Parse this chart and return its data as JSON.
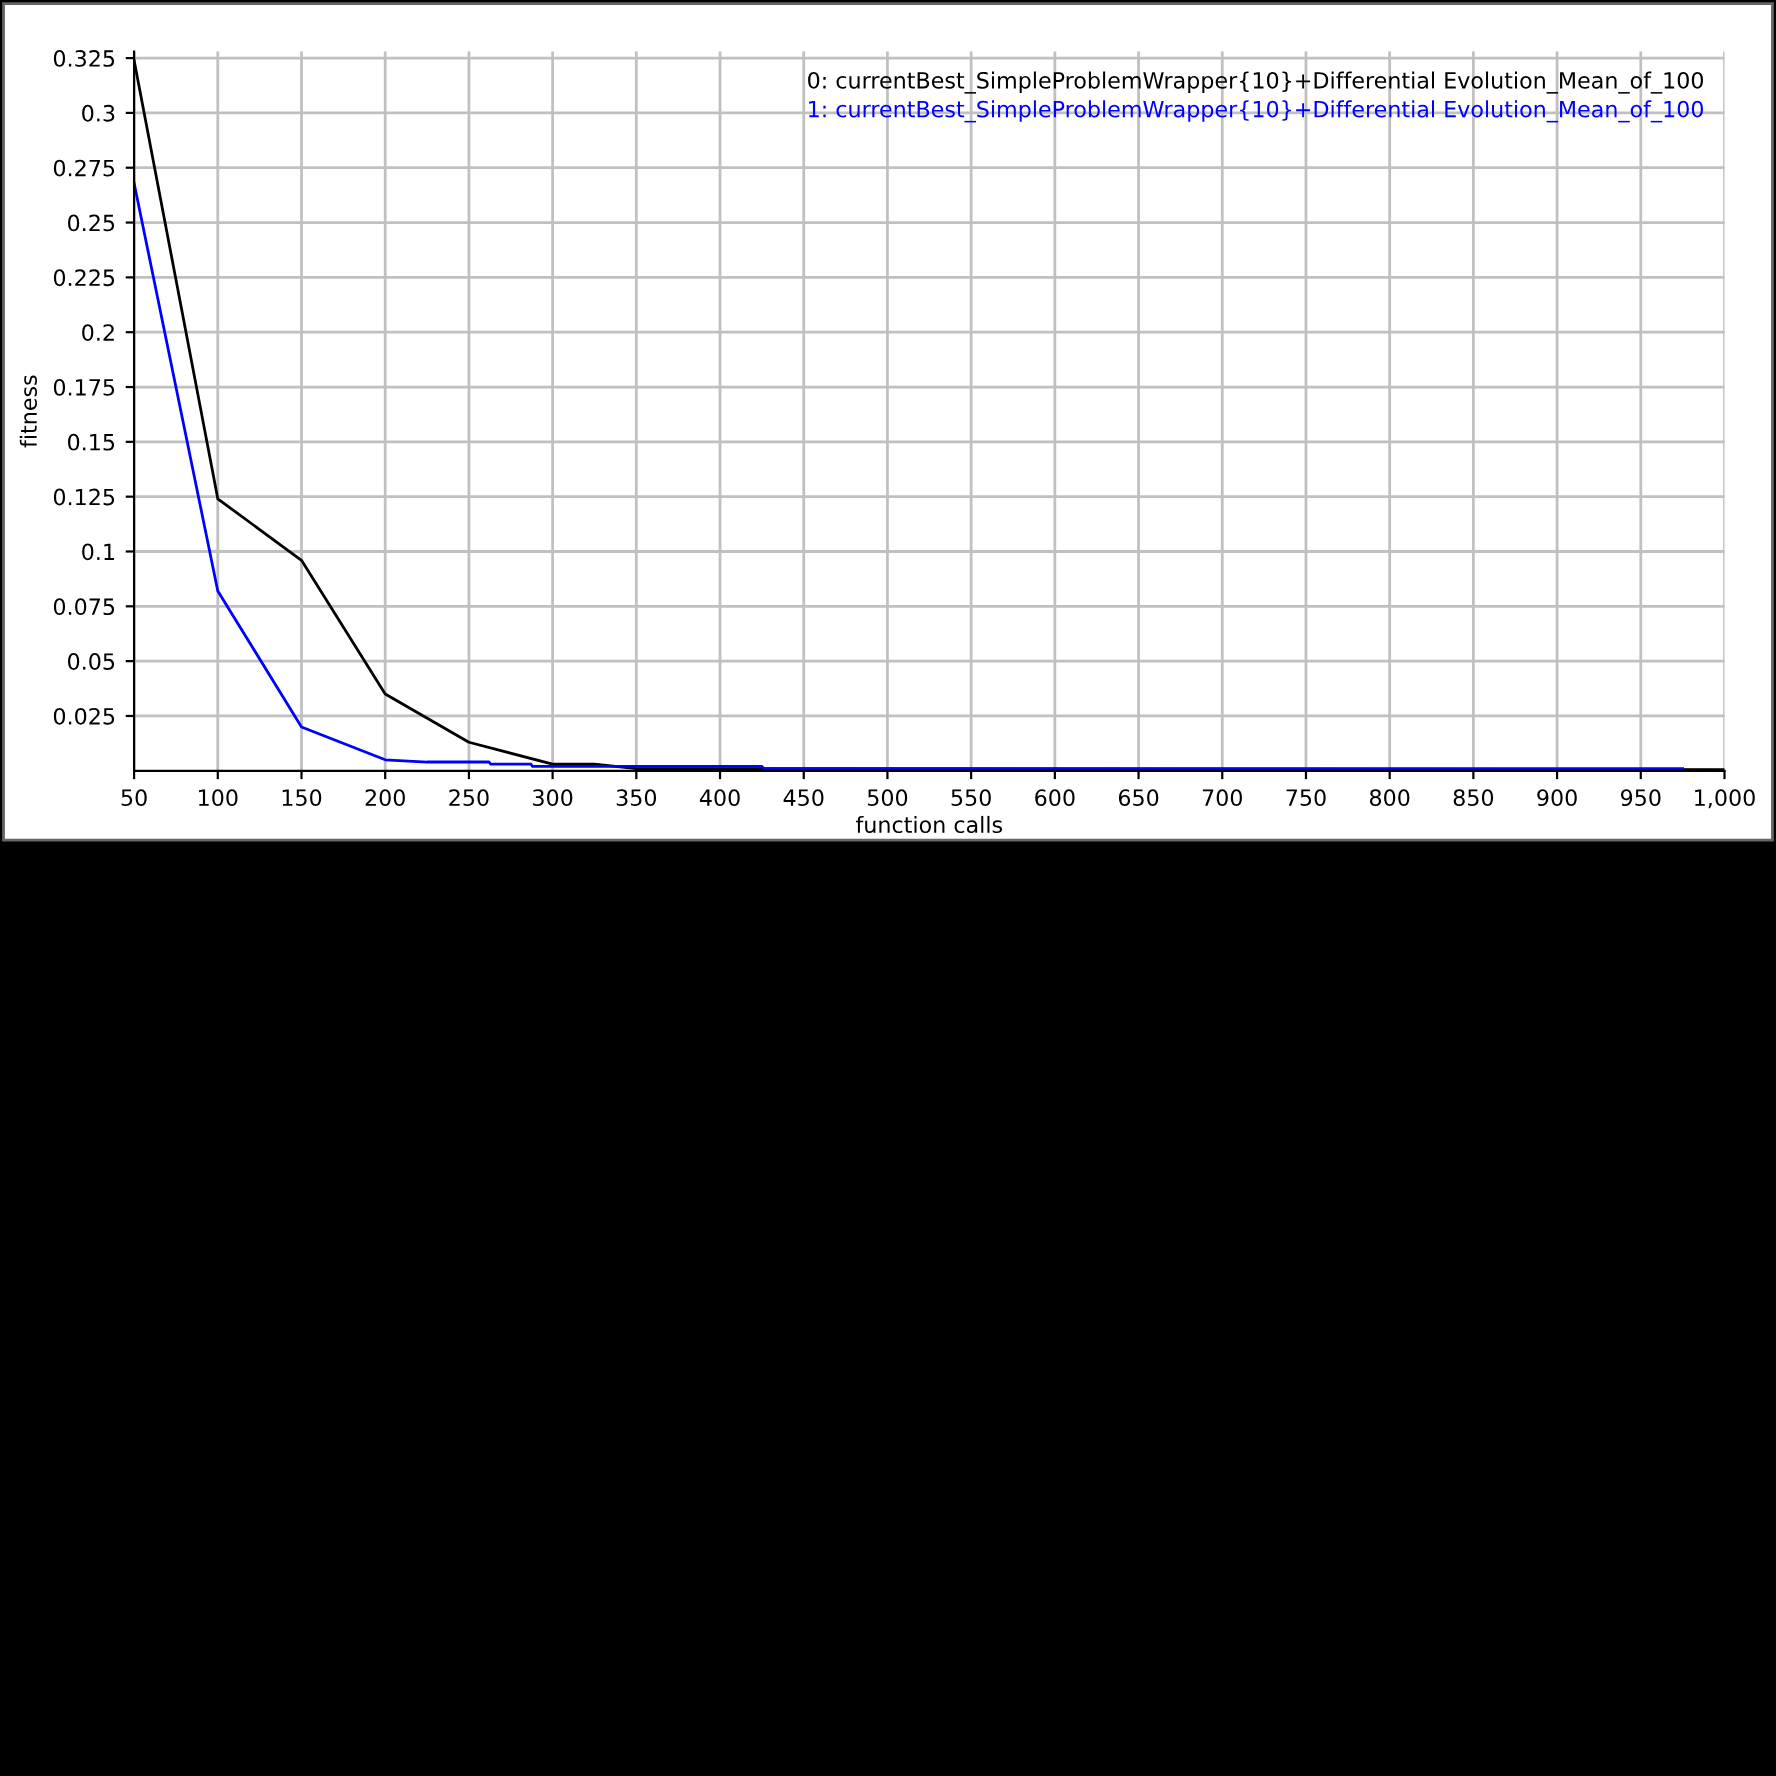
{
  "chart_data": {
    "type": "line",
    "xlabel": "function calls",
    "ylabel": "fitness",
    "xlim": [
      50,
      1000
    ],
    "ylim": [
      0,
      0.328
    ],
    "xticks": [
      50,
      100,
      150,
      200,
      250,
      300,
      350,
      400,
      450,
      500,
      550,
      600,
      650,
      700,
      750,
      800,
      850,
      900,
      950,
      {
        "value": 1000,
        "label": "1,000"
      }
    ],
    "yticks": [
      0.025,
      0.05,
      0.075,
      0.1,
      0.125,
      0.15,
      0.175,
      0.2,
      0.225,
      0.25,
      0.275,
      0.3,
      0.325
    ],
    "grid": true,
    "legend": "top right",
    "marker": "none",
    "line_style": "solid",
    "series": [
      {
        "name": "0: currentBest_SimpleProblemWrapper{10}+Differential Evolution_Mean_of_100",
        "color": "#000000",
        "x": [
          50,
          100,
          150,
          200,
          250,
          300,
          325,
          350,
          1000
        ],
        "values": [
          0.324,
          0.124,
          0.096,
          0.035,
          0.013,
          0.003,
          0.003,
          0.001,
          0.0005
        ]
      },
      {
        "name": "1: currentBest_SimpleProblemWrapper{10}+Differential Evolution_Mean_of_100",
        "color": "#0000ff",
        "x": [
          50,
          100,
          150,
          200,
          225,
          262,
          263,
          287,
          288,
          425,
          426,
          975
        ],
        "values": [
          0.268,
          0.082,
          0.02,
          0.005,
          0.004,
          0.004,
          0.003,
          0.003,
          0.002,
          0.002,
          0.001,
          0.001
        ]
      }
    ]
  }
}
